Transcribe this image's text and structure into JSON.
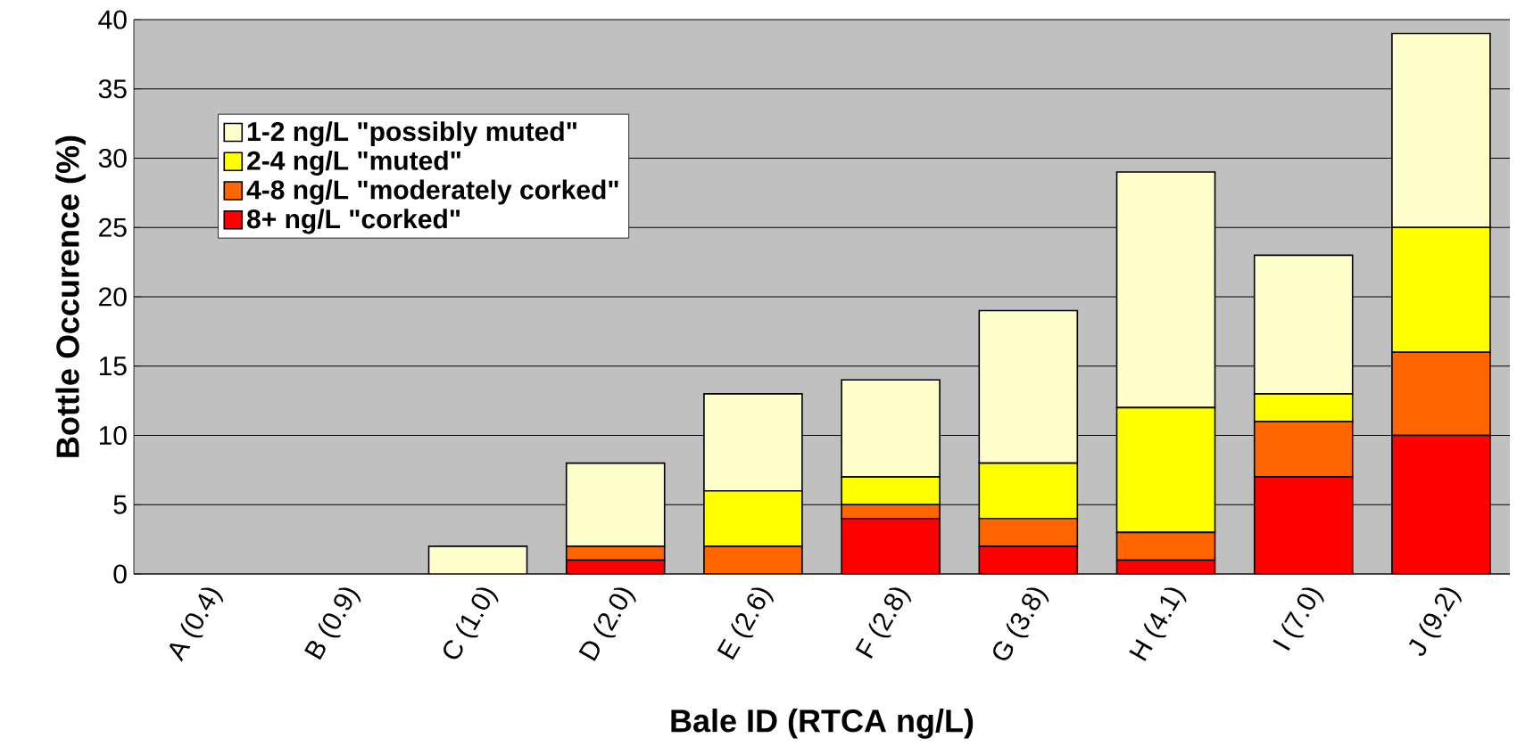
{
  "chart_data": {
    "type": "bar",
    "stacked": true,
    "xlabel": "Bale ID (RTCA ng/L)",
    "ylabel": "Bottle Occurence (%)",
    "categories": [
      "A (0.4)",
      "B (0.9)",
      "C (1.0)",
      "D (2.0)",
      "E (2.6)",
      "F (2.8)",
      "G (3.8)",
      "H (4.1)",
      "I (7.0)",
      "J (9.2)"
    ],
    "series": [
      {
        "name": "8+ ng/L \"corked\"",
        "color": "#ff0000",
        "values": [
          0,
          0,
          0,
          1,
          0,
          4,
          2,
          1,
          7,
          10
        ]
      },
      {
        "name": "4-8 ng/L \"moderately corked\"",
        "color": "#ff6600",
        "values": [
          0,
          0,
          0,
          1,
          2,
          1,
          2,
          2,
          4,
          6
        ]
      },
      {
        "name": "2-4 ng/L \"muted\"",
        "color": "#ffff00",
        "values": [
          0,
          0,
          0,
          0,
          4,
          2,
          4,
          9,
          2,
          9
        ]
      },
      {
        "name": "1-2 ng/L \"possibly muted\"",
        "color": "#ffffcc",
        "values": [
          0,
          0,
          2,
          6,
          7,
          7,
          11,
          17,
          10,
          14
        ]
      }
    ],
    "ylim": [
      0,
      40
    ],
    "yticks": [
      0,
      5,
      10,
      15,
      20,
      25,
      30,
      35,
      40
    ],
    "grid": "y",
    "legend": "top left"
  }
}
